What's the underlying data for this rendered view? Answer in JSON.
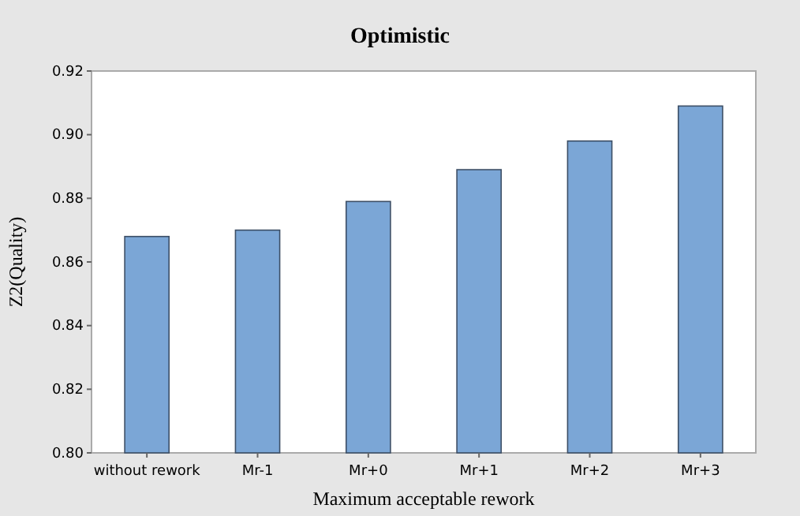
{
  "chart_data": {
    "type": "bar",
    "title": "Optimistic",
    "xlabel": "Maximum acceptable rework",
    "ylabel": "Z2(Quality)",
    "categories": [
      "without rework",
      "Mr-1",
      "Mr+0",
      "Mr+1",
      "Mr+2",
      "Mr+3"
    ],
    "values": [
      0.868,
      0.87,
      0.879,
      0.889,
      0.898,
      0.909
    ],
    "color": "#7ba6d6",
    "ylim": [
      0.8,
      0.92
    ],
    "yticks": [
      {
        "value": 0.8,
        "label": "0.80"
      },
      0.82,
      0.84,
      0.86,
      0.88,
      {
        "value": 0.9,
        "label": "0.90"
      },
      0.92
    ],
    "grid": false
  }
}
